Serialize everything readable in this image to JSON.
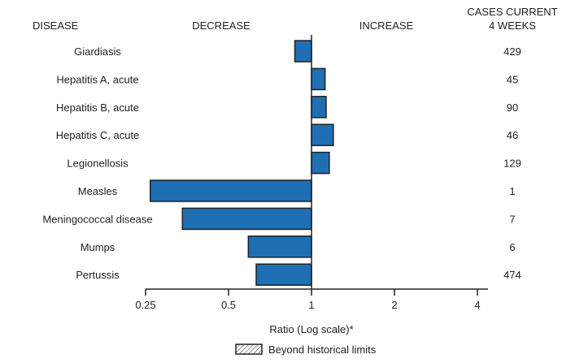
{
  "chart_data": {
    "type": "bar",
    "orientation": "horizontal",
    "headers": {
      "disease": "DISEASE",
      "decrease": "DECREASE",
      "increase": "INCREASE",
      "cases_line1": "CASES CURRENT",
      "cases_line2": "4 WEEKS"
    },
    "categories": [
      "Giardiasis",
      "Hepatitis A, acute",
      "Hepatitis B, acute",
      "Hepatitis C, acute",
      "Legionellosis",
      "Measles",
      "Meningococcal disease",
      "Mumps",
      "Pertussis"
    ],
    "values": [
      0.87,
      1.12,
      1.13,
      1.2,
      1.16,
      0.26,
      0.34,
      0.59,
      0.63
    ],
    "cases": [
      "429",
      "45",
      "90",
      "46",
      "129",
      "1",
      "7",
      "6",
      "474"
    ],
    "xlabel": "Ratio (Log scale)*",
    "x_scale": "log2",
    "xlim": [
      0.25,
      4
    ],
    "xticks": [
      "0.25",
      "0.5",
      "1",
      "2",
      "4"
    ],
    "xtick_values": [
      0.25,
      0.5,
      1,
      2,
      4
    ],
    "legend": {
      "label": "Beyond historical limits",
      "placement": "bottom-center"
    },
    "bar_color": "#1f6fb4"
  }
}
